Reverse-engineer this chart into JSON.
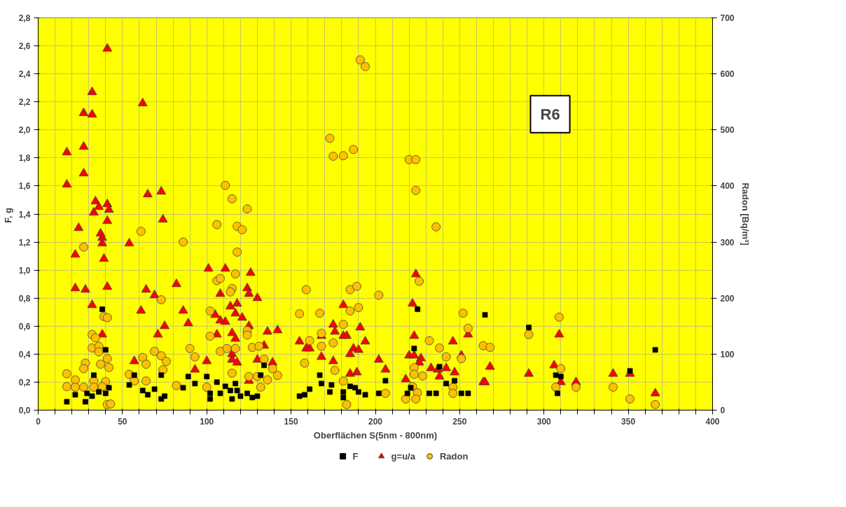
{
  "chart_data": {
    "type": "scatter",
    "xlabel": "Oberflächen S(5nm - 800nm)",
    "ylabel": "F,  g",
    "y2label": "Radon [Bq/m³]",
    "annotations": [
      "R6"
    ],
    "xlim": [
      0,
      400
    ],
    "xticks": [
      0,
      {
        "value": 10,
        "label": null
      },
      {
        "value": 20,
        "label": null
      },
      {
        "value": 30,
        "label": null
      },
      {
        "value": 40,
        "label": null
      },
      50,
      {
        "value": 60,
        "label": null
      },
      {
        "value": 70,
        "label": null
      },
      {
        "value": 80,
        "label": null
      },
      {
        "value": 90,
        "label": null
      },
      100,
      {
        "value": 110,
        "label": null
      },
      {
        "value": 120,
        "label": null
      },
      {
        "value": 130,
        "label": null
      },
      {
        "value": 140,
        "label": null
      },
      150,
      {
        "value": 160,
        "label": null
      },
      {
        "value": 170,
        "label": null
      },
      {
        "value": 180,
        "label": null
      },
      {
        "value": 190,
        "label": null
      },
      200,
      {
        "value": 210,
        "label": null
      },
      {
        "value": 220,
        "label": null
      },
      {
        "value": 230,
        "label": null
      },
      {
        "value": 240,
        "label": null
      },
      250,
      {
        "value": 260,
        "label": null
      },
      {
        "value": 270,
        "label": null
      },
      {
        "value": 280,
        "label": null
      },
      {
        "value": 290,
        "label": null
      },
      300,
      {
        "value": 310,
        "label": null
      },
      {
        "value": 320,
        "label": null
      },
      {
        "value": 330,
        "label": null
      },
      {
        "value": 340,
        "label": null
      },
      350,
      {
        "value": 360,
        "label": null
      },
      {
        "value": 370,
        "label": null
      },
      {
        "value": 380,
        "label": null
      },
      {
        "value": 390,
        "label": null
      },
      400
    ],
    "ylim": [
      0,
      2.8
    ],
    "yticks": [
      {
        "value": 0,
        "label": "0,0"
      },
      {
        "value": 0.2,
        "label": "0,2"
      },
      {
        "value": 0.4,
        "label": "0,4"
      },
      {
        "value": 0.6,
        "label": "0,6"
      },
      {
        "value": 0.8,
        "label": "0,8"
      },
      {
        "value": 1.0,
        "label": "1,0"
      },
      {
        "value": 1.2,
        "label": "1,2"
      },
      {
        "value": 1.4,
        "label": "1,4"
      },
      {
        "value": 1.6,
        "label": "1,6"
      },
      {
        "value": 1.8,
        "label": "1,8"
      },
      {
        "value": 2.0,
        "label": "2,0"
      },
      {
        "value": 2.2,
        "label": "2,2"
      },
      {
        "value": 2.4,
        "label": "2,4"
      },
      {
        "value": 2.6,
        "label": "2,6"
      },
      {
        "value": 2.8,
        "label": "2,8"
      }
    ],
    "y2lim": [
      0,
      700
    ],
    "y2ticks": [
      0,
      100,
      200,
      300,
      400,
      500,
      600,
      700
    ],
    "grid": true,
    "legend": "bottom",
    "series": [
      {
        "name": "F",
        "color": "#000000",
        "marker": "square",
        "x": [
          38,
          40,
          33,
          17,
          22,
          28,
          29,
          32,
          36,
          40,
          42,
          54,
          57,
          62,
          65,
          69,
          73,
          75,
          73,
          86,
          89,
          93,
          100,
          102,
          102,
          106,
          108,
          111,
          114,
          115,
          117,
          118,
          120,
          124,
          127,
          130,
          132,
          134,
          155,
          158,
          161,
          167,
          168,
          174,
          173,
          181,
          181,
          185,
          188,
          190,
          194,
          202,
          206,
          225,
          223,
          221,
          219,
          232,
          236,
          238,
          242,
          247,
          251,
          255,
          265,
          291,
          307,
          310,
          308,
          351,
          366
        ],
        "values": [
          0.72,
          0.43,
          0.25,
          0.06,
          0.11,
          0.06,
          0.12,
          0.1,
          0.13,
          0.12,
          0.16,
          0.18,
          0.25,
          0.14,
          0.11,
          0.15,
          0.25,
          0.1,
          0.08,
          0.16,
          0.24,
          0.19,
          0.24,
          0.12,
          0.08,
          0.2,
          0.12,
          0.17,
          0.14,
          0.08,
          0.19,
          0.14,
          0.1,
          0.12,
          0.09,
          0.1,
          0.25,
          0.32,
          0.1,
          0.11,
          0.15,
          0.25,
          0.19,
          0.18,
          0.13,
          0.13,
          0.09,
          0.17,
          0.16,
          0.13,
          0.11,
          0.12,
          0.21,
          0.72,
          0.44,
          0.16,
          0.12,
          0.12,
          0.12,
          0.31,
          0.19,
          0.21,
          0.12,
          0.12,
          0.68,
          0.59,
          0.25,
          0.24,
          0.12,
          0.28,
          0.43
        ]
      },
      {
        "name": "g=u/a",
        "color": "#ff0000",
        "marker": "triangle",
        "x": [
          17,
          17,
          22,
          24,
          27,
          27,
          27,
          32,
          32,
          34,
          33,
          36,
          37,
          38,
          38,
          39,
          41,
          41,
          42,
          41,
          41,
          22,
          28,
          32,
          38,
          54,
          62,
          61,
          65,
          64,
          69,
          73,
          74,
          71,
          75,
          57,
          82,
          86,
          89,
          93,
          100,
          101,
          111,
          126,
          124,
          125,
          130,
          108,
          114,
          118,
          117,
          121,
          105,
          108,
          111,
          125,
          106,
          115,
          117,
          136,
          115,
          115,
          118,
          130,
          134,
          125,
          142,
          139,
          155,
          159,
          161,
          168,
          175,
          176,
          181,
          181,
          183,
          191,
          194,
          187,
          190,
          185,
          168,
          175,
          185,
          189,
          202,
          206,
          224,
          222,
          223,
          220,
          223,
          227,
          226,
          218,
          233,
          237,
          242,
          238,
          247,
          246,
          255,
          251,
          264,
          268,
          265,
          291,
          309,
          306,
          310,
          319,
          341,
          351,
          366
        ],
        "values": [
          1.84,
          1.61,
          1.11,
          1.3,
          2.12,
          1.88,
          1.69,
          2.27,
          2.11,
          1.49,
          1.41,
          1.45,
          1.26,
          1.23,
          1.19,
          1.08,
          2.58,
          1.47,
          1.43,
          1.35,
          0.88,
          0.87,
          0.86,
          0.75,
          0.54,
          1.19,
          2.19,
          0.71,
          1.54,
          0.86,
          0.82,
          1.56,
          1.36,
          0.54,
          0.6,
          0.35,
          0.9,
          0.71,
          0.62,
          0.29,
          0.35,
          1.01,
          1.01,
          0.98,
          0.87,
          0.83,
          0.8,
          0.83,
          0.74,
          0.76,
          0.69,
          0.66,
          0.68,
          0.64,
          0.63,
          0.6,
          0.54,
          0.55,
          0.51,
          0.56,
          0.4,
          0.36,
          0.34,
          0.36,
          0.46,
          0.21,
          0.57,
          0.34,
          0.49,
          0.44,
          0.44,
          0.53,
          0.61,
          0.56,
          0.75,
          0.53,
          0.53,
          0.59,
          0.49,
          0.44,
          0.43,
          0.4,
          0.38,
          0.35,
          0.26,
          0.27,
          0.36,
          0.29,
          0.97,
          0.76,
          0.53,
          0.39,
          0.39,
          0.37,
          0.34,
          0.22,
          0.3,
          0.29,
          0.3,
          0.24,
          0.27,
          0.49,
          0.54,
          0.39,
          0.2,
          0.31,
          0.2,
          0.26,
          0.54,
          0.32,
          0.2,
          0.2,
          0.26,
          0.26,
          0.12
        ]
      },
      {
        "name": "Radon",
        "color": "#ffc000",
        "marker": "circle",
        "axis": "y2",
        "x": [
          111,
          115,
          124,
          106,
          118,
          121,
          61,
          86,
          118,
          27,
          117,
          106,
          108,
          115,
          114,
          73,
          102,
          39,
          41,
          32,
          34,
          102,
          124,
          124,
          32,
          36,
          36,
          90,
          69,
          73,
          76,
          74,
          62,
          64,
          93,
          108,
          112,
          117,
          127,
          131,
          134,
          28,
          27,
          37,
          41,
          42,
          17,
          22,
          17,
          22,
          27,
          33,
          33,
          40,
          38,
          54,
          57,
          64,
          82,
          100,
          115,
          125,
          130,
          132,
          41,
          43,
          173,
          175,
          181,
          187,
          220,
          224,
          224,
          236,
          226,
          159,
          185,
          189,
          202,
          155,
          167,
          185,
          190,
          181,
          168,
          161,
          168,
          175,
          136,
          139,
          142,
          158,
          176,
          181,
          183,
          206,
          232,
          238,
          242,
          251,
          252,
          255,
          223,
          223,
          228,
          222,
          225,
          218,
          224,
          246,
          246,
          264,
          268,
          291,
          309,
          310,
          307,
          319,
          341,
          351,
          366,
          191,
          194
        ],
        "values": [
          401,
          377,
          359,
          331,
          328,
          322,
          319,
          300,
          282,
          291,
          243,
          231,
          235,
          217,
          211,
          197,
          177,
          167,
          165,
          135,
          129,
          132,
          142,
          134,
          111,
          114,
          104,
          110,
          105,
          97,
          87,
          72,
          94,
          82,
          95,
          105,
          110,
          110,
          112,
          114,
          91,
          84,
          74,
          82,
          92,
          76,
          65,
          54,
          42,
          41,
          41,
          52,
          41,
          51,
          42,
          64,
          52,
          52,
          44,
          41,
          66,
          60,
          60,
          41,
          10,
          11,
          485,
          453,
          454,
          465,
          447,
          447,
          392,
          327,
          230,
          215,
          215,
          221,
          205,
          172,
          173,
          177,
          183,
          153,
          137,
          124,
          114,
          120,
          54,
          74,
          62,
          84,
          71,
          52,
          10,
          30,
          124,
          111,
          95,
          92,
          173,
          146,
          76,
          64,
          61,
          42,
          31,
          20,
          20,
          41,
          30,
          115,
          112,
          135,
          166,
          74,
          41,
          41,
          41,
          20,
          10,
          625,
          613
        ]
      }
    ]
  }
}
